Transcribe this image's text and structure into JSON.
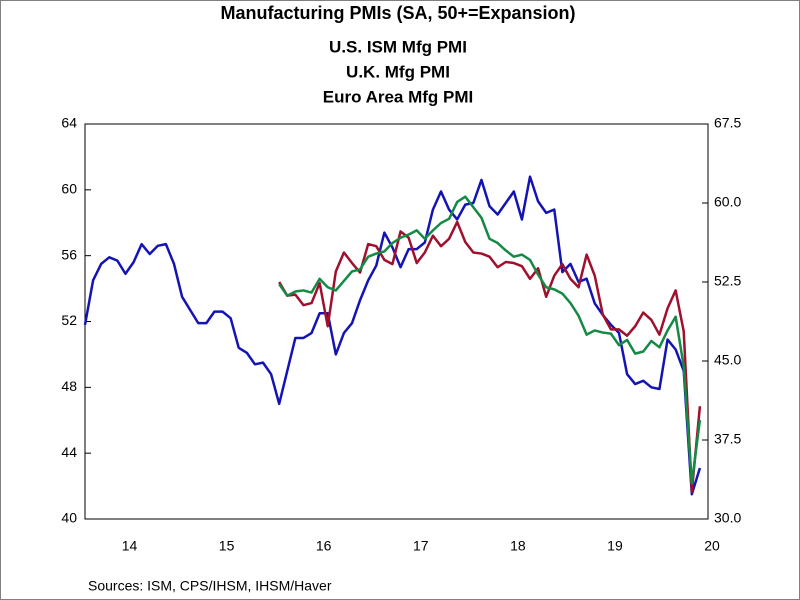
{
  "chart_data": {
    "type": "line",
    "title": "Manufacturing PMIs (SA, 50+=Expansion)",
    "source": "Sources:  ISM, CPS/IHSM, IHSM/Haver",
    "categories": [
      null,
      null,
      null,
      null,
      null,
      "14",
      null,
      null,
      null,
      null,
      null,
      null,
      null,
      null,
      null,
      null,
      null,
      "15",
      null,
      null,
      null,
      null,
      null,
      null,
      null,
      null,
      null,
      null,
      null,
      "16",
      null,
      null,
      null,
      null,
      null,
      null,
      null,
      null,
      null,
      null,
      null,
      "17",
      null,
      null,
      null,
      null,
      null,
      null,
      null,
      null,
      null,
      null,
      null,
      "18",
      null,
      null,
      null,
      null,
      null,
      null,
      null,
      null,
      null,
      null,
      null,
      "19",
      null,
      null,
      null,
      null,
      null,
      null,
      null,
      null,
      null,
      null,
      null,
      "20"
    ],
    "ylim": [
      40,
      64
    ],
    "yticks": [
      40,
      44,
      48,
      52,
      56,
      60,
      64
    ],
    "y2lim": [
      30,
      67.5
    ],
    "y2ticks": [
      {
        "value": 30,
        "label": "30.0"
      },
      {
        "value": 37.5,
        "label": "37.5"
      },
      {
        "value": 45,
        "label": "45.0"
      },
      {
        "value": 52.5,
        "label": "52.5"
      },
      {
        "value": 60,
        "label": "60.0"
      },
      {
        "value": 67.5,
        "label": "67.5"
      }
    ],
    "series": [
      {
        "name": "U.S. ISM Mfg PMI",
        "color": "#1414b4",
        "values": [
          51.8,
          54.5,
          55.5,
          55.9,
          55.7,
          54.9,
          55.6,
          56.7,
          56.1,
          56.6,
          56.7,
          55.5,
          53.5,
          52.7,
          51.9,
          51.9,
          52.6,
          52.6,
          52.2,
          50.4,
          50.1,
          49.4,
          49.5,
          48.8,
          47.0,
          49.0,
          51.0,
          51.0,
          51.3,
          52.5,
          52.5,
          50.0,
          51.3,
          51.9,
          53.3,
          54.5,
          55.4,
          57.4,
          56.5,
          55.3,
          56.4,
          56.4,
          56.8,
          58.8,
          59.9,
          58.8,
          58.2,
          59.1,
          59.2,
          60.6,
          59.0,
          58.5,
          59.2,
          59.9,
          58.2,
          60.8,
          59.3,
          58.6,
          58.8,
          55.0,
          55.5,
          54.4,
          54.6,
          53.1,
          52.4,
          51.8,
          51.3,
          48.8,
          48.2,
          48.4,
          48.0,
          47.9,
          50.9,
          50.3,
          49.0,
          41.5,
          43.1,
          null
        ]
      },
      {
        "name": "U.K. Mfg PMI",
        "color": "#a0102c",
        "axis": "y2",
        "values": [
          null,
          null,
          null,
          null,
          null,
          null,
          null,
          null,
          null,
          null,
          null,
          null,
          null,
          null,
          null,
          null,
          null,
          null,
          null,
          null,
          null,
          null,
          null,
          null,
          52.5,
          51.2,
          51.3,
          50.3,
          50.5,
          52.4,
          48.3,
          53.5,
          55.3,
          54.3,
          53.4,
          56.1,
          55.9,
          54.6,
          54.2,
          57.3,
          56.7,
          54.3,
          55.3,
          56.9,
          55.9,
          56.6,
          58.2,
          56.3,
          55.3,
          55.2,
          54.9,
          53.9,
          54.4,
          54.3,
          54.0,
          52.8,
          53.8,
          51.1,
          53.1,
          54.2,
          52.8,
          52.0,
          55.1,
          53.1,
          49.4,
          48.0,
          48.0,
          47.4,
          48.3,
          49.6,
          48.9,
          47.5,
          50.0,
          51.7,
          47.8,
          32.6,
          40.7,
          null
        ]
      },
      {
        "name": "Euro Area Mfg PMI",
        "color": "#148a44",
        "axis": "y2",
        "values": [
          null,
          null,
          null,
          null,
          null,
          null,
          null,
          null,
          null,
          null,
          null,
          null,
          null,
          null,
          null,
          null,
          null,
          null,
          null,
          null,
          null,
          null,
          null,
          null,
          52.3,
          51.2,
          51.6,
          51.7,
          51.5,
          52.8,
          52.0,
          51.7,
          52.6,
          53.5,
          53.7,
          54.9,
          55.2,
          55.4,
          56.2,
          56.7,
          57.0,
          57.4,
          56.6,
          57.4,
          58.1,
          58.5,
          60.1,
          60.6,
          59.6,
          58.6,
          56.6,
          56.2,
          55.5,
          54.9,
          55.1,
          54.6,
          53.2,
          52.0,
          51.8,
          51.4,
          50.5,
          49.3,
          47.5,
          47.9,
          47.7,
          47.6,
          46.5,
          47.0,
          45.7,
          45.9,
          46.9,
          46.3,
          47.9,
          49.2,
          44.5,
          33.4,
          39.4,
          null
        ]
      }
    ]
  }
}
